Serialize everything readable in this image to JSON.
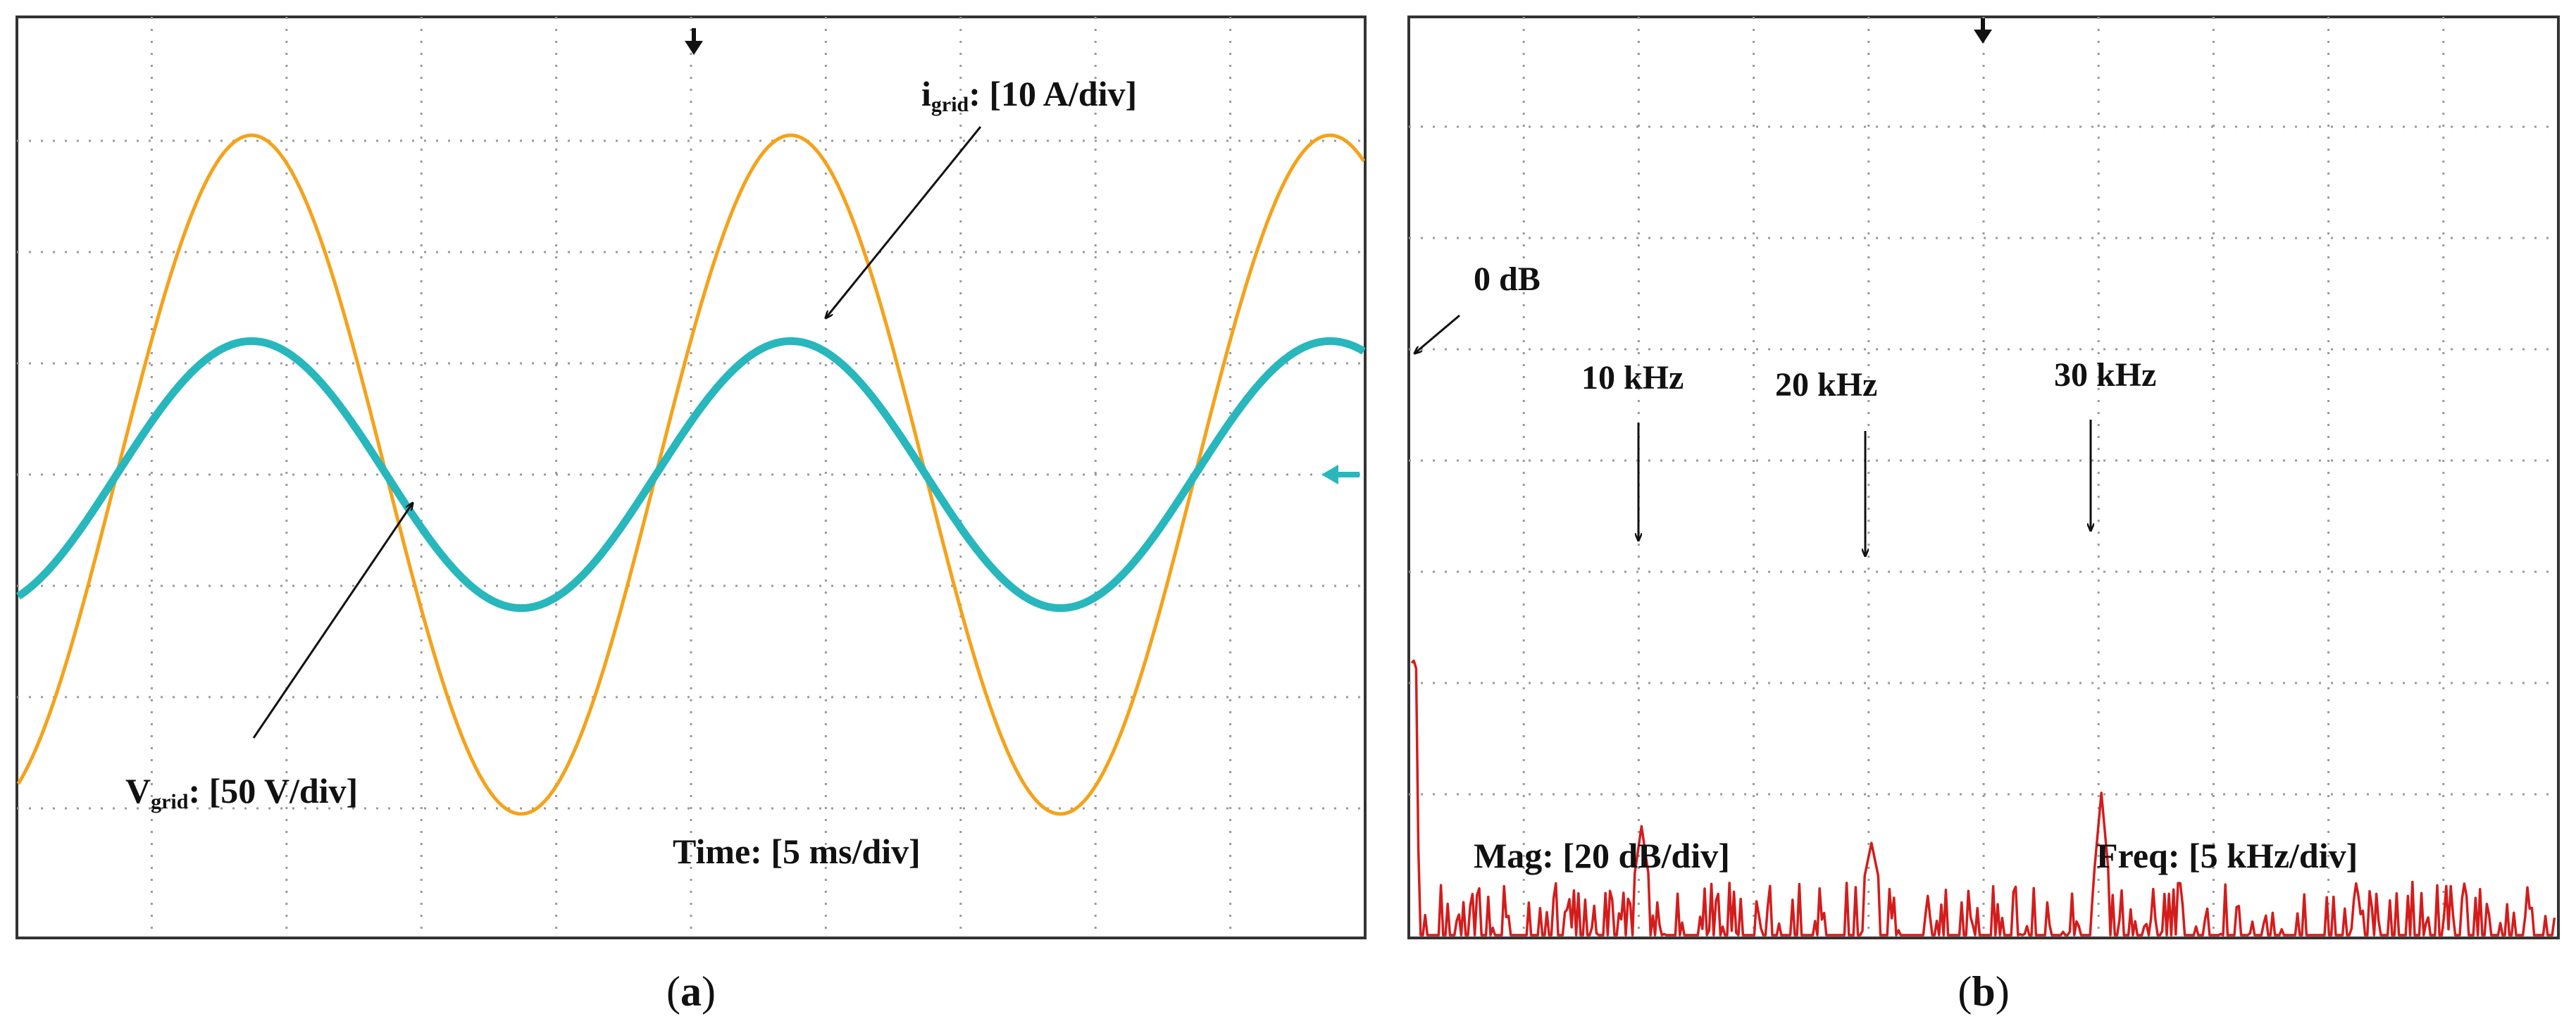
{
  "chart_data": [
    {
      "panel": "a",
      "type": "line",
      "description_free": true,
      "grid": true,
      "x": {
        "divisions": 10,
        "unit_per_div_label": "Time: [5 ms/div]",
        "ms_per_div": 5,
        "range_ms": [
          0,
          50
        ]
      },
      "series": [
        {
          "name": "V_grid",
          "color": "#f5a21b",
          "unit": "V",
          "per_div": 50,
          "amplitude_div": 3.05,
          "offset_div": 0.0,
          "frequency_hz": 50,
          "phase_zero_crossing_ms": 3.7,
          "label_main": "V",
          "label_sub": "grid",
          "label_rest": ": [50 V/div]"
        },
        {
          "name": "i_grid",
          "color": "#27b7bd",
          "unit": "A",
          "per_div": 10,
          "amplitude_div": 1.2,
          "offset_div": 0.0,
          "frequency_hz": 50,
          "phase_zero_crossing_ms": 3.7,
          "label_main": "i",
          "label_sub": "grid",
          "label_rest": ": [10 A/div]"
        }
      ],
      "caption": "a"
    },
    {
      "panel": "b",
      "type": "line",
      "grid": true,
      "x": {
        "divisions": 10,
        "unit_per_div_label": "Freq: [5 kHz/div]",
        "khz_per_div": 5,
        "range_khz": [
          0,
          50
        ]
      },
      "y": {
        "unit_per_div_label": "Mag: [20 dB/div]",
        "db_per_div": 20,
        "reference_label": "0 dB"
      },
      "series": [
        {
          "name": "FFT",
          "color": "#d41c1c",
          "noise_floor_db": -112,
          "noise_top_db": -96,
          "peaks": [
            {
              "khz": 0.0,
              "db": -60
            },
            {
              "khz": 10.0,
              "db": -86
            },
            {
              "khz": 20.0,
              "db": -89
            },
            {
              "khz": 30.0,
              "db": -80
            }
          ]
        }
      ],
      "annotations": [
        "0 dB",
        "10 kHz",
        "20 kHz",
        "30 kHz"
      ],
      "caption": "b"
    }
  ]
}
